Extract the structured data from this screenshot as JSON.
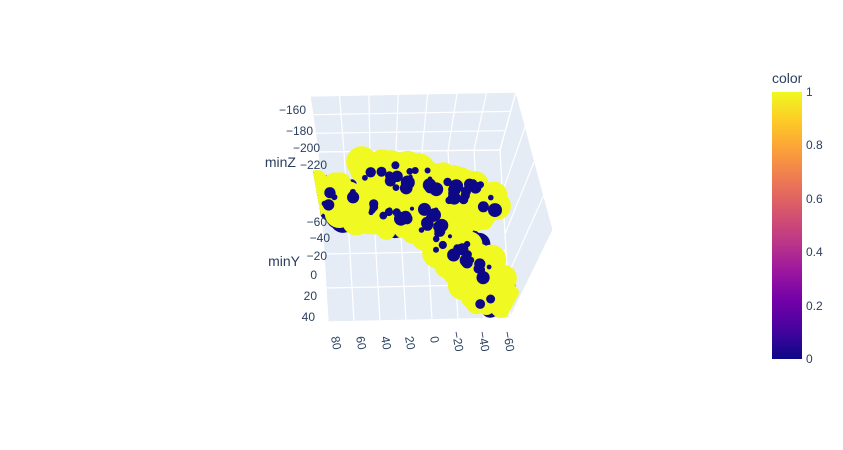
{
  "chart_data": {
    "type": "scatter3d",
    "title": "",
    "axes": {
      "z": {
        "title": "minZ",
        "ticks": [
          "−160",
          "−180",
          "−200",
          "−220"
        ]
      },
      "y": {
        "title": "minY",
        "ticks": [
          "−60",
          "−40",
          "−20",
          "0",
          "20",
          "40"
        ]
      },
      "x": {
        "title": "",
        "ticks": [
          "80",
          "60",
          "40",
          "20",
          "0",
          "−20",
          "−40",
          "−60"
        ]
      }
    },
    "colorbar": {
      "title": "color",
      "ticks": [
        "1",
        "0.8",
        "0.6",
        "0.4",
        "0.2",
        "0"
      ],
      "range": [
        0,
        1
      ],
      "colorscale": [
        "#0d0887",
        "#46039f",
        "#7201a8",
        "#9c179e",
        "#bd3786",
        "#d8576b",
        "#ed7953",
        "#fb9f3a",
        "#fdca26",
        "#f0f921"
      ]
    },
    "scene": {
      "background": "#e5ecf6",
      "grid": true
    },
    "point_colors": {
      "low": "#0d0887",
      "high": "#f0f921"
    }
  }
}
